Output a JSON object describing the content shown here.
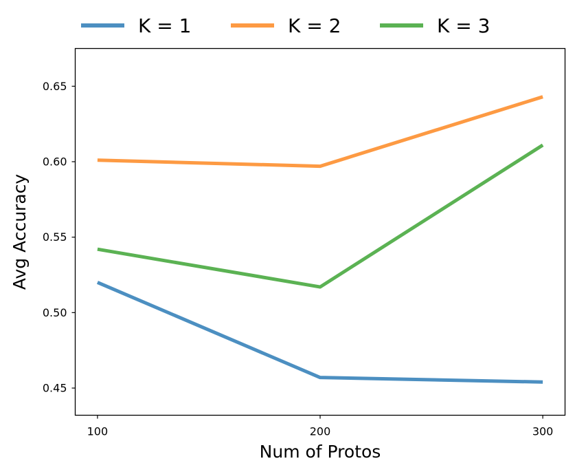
{
  "chart_data": {
    "type": "line",
    "title": "",
    "xlabel": "Num of Protos",
    "ylabel": "Avg Accuracy",
    "x": [
      100,
      200,
      300
    ],
    "x_ticks": [
      "100",
      "200",
      "300"
    ],
    "y_ticks": [
      "0.45",
      "0.50",
      "0.55",
      "0.60",
      "0.65"
    ],
    "y_tick_values": [
      0.45,
      0.5,
      0.55,
      0.6,
      0.65
    ],
    "xlim": [
      90,
      310
    ],
    "ylim": [
      0.432,
      0.675
    ],
    "grid": false,
    "legend_position": "top",
    "series": [
      {
        "name": "K = 1",
        "color": "#4c8fc1",
        "values": [
          0.52,
          0.457,
          0.454
        ]
      },
      {
        "name": "K = 2",
        "color": "#fd9a43",
        "values": [
          0.601,
          0.597,
          0.643
        ]
      },
      {
        "name": "K = 3",
        "color": "#5bb253",
        "values": [
          0.542,
          0.517,
          0.611
        ]
      }
    ]
  }
}
